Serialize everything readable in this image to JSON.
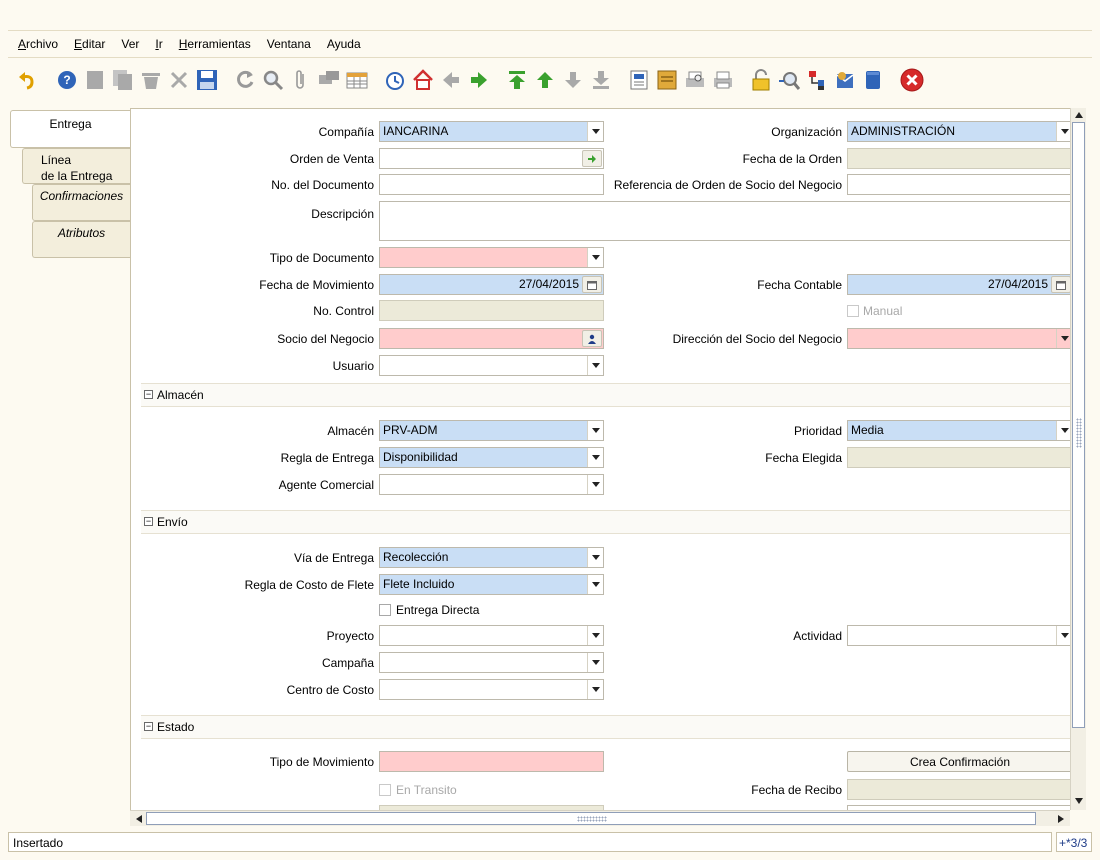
{
  "menu": {
    "items": [
      {
        "mn": "A",
        "rest": "rchivo"
      },
      {
        "mn": "E",
        "rest": "ditar"
      },
      {
        "mn": "",
        "rest": "Ver"
      },
      {
        "mn": "I",
        "rest": "r"
      },
      {
        "mn": "H",
        "rest": "erramientas"
      },
      {
        "mn": "",
        "rest": "Ventana"
      },
      {
        "mn": "",
        "rest": "Ayuda"
      }
    ]
  },
  "toolbar": {
    "icons": [
      "undo-icon",
      "help-icon",
      "new-record-icon",
      "copy-record-icon",
      "delete-icon",
      "delete-selection-icon",
      "save-icon",
      "refresh-icon",
      "find-icon",
      "attachment-icon",
      "chat-icon",
      "grid-toggle-icon",
      "history-icon",
      "home-icon",
      "previous-icon",
      "next-icon",
      "first-record-icon",
      "parent-record-icon",
      "detail-record-icon",
      "last-record-icon",
      "report-icon",
      "archived-documents-icon",
      "print-preview-icon",
      "print-icon",
      "lock-icon",
      "zoom-across-icon",
      "active-workflows-icon",
      "requests-icon",
      "product-info-icon",
      "close-window-icon"
    ]
  },
  "tabs": {
    "entrega": "Entrega",
    "linea_1": "Línea",
    "linea_2": "de la Entrega",
    "confirmaciones": "Confirmaciones",
    "atributos": "Atributos"
  },
  "form": {
    "compania": {
      "label": "Compañía",
      "value": "IANCARINA"
    },
    "organizacion": {
      "label": "Organización",
      "value": "ADMINISTRACIÓN"
    },
    "orden_venta": {
      "label": "Orden de Venta",
      "value": ""
    },
    "fecha_orden": {
      "label": "Fecha de la Orden",
      "value": ""
    },
    "no_documento": {
      "label": "No. del Documento",
      "value": ""
    },
    "referencia_orden": {
      "label": "Referencia de Orden de Socio del Negocio",
      "value": ""
    },
    "descripcion": {
      "label": "Descripción",
      "value": ""
    },
    "tipo_documento": {
      "label": "Tipo de Documento",
      "value": ""
    },
    "fecha_movimiento": {
      "label": "Fecha de Movimiento",
      "value": "27/04/2015"
    },
    "fecha_contable": {
      "label": "Fecha Contable",
      "value": "27/04/2015"
    },
    "no_control": {
      "label": "No. Control",
      "value": ""
    },
    "manual": {
      "label": "Manual",
      "checked": false
    },
    "socio_negocio": {
      "label": "Socio del Negocio",
      "value": ""
    },
    "direccion_socio": {
      "label": "Dirección del Socio del Negocio",
      "value": ""
    },
    "usuario": {
      "label": "Usuario",
      "value": ""
    }
  },
  "almacen_section": {
    "title": "Almacén",
    "almacen": {
      "label": "Almacén",
      "value": "PRV-ADM"
    },
    "prioridad": {
      "label": "Prioridad",
      "value": "Media"
    },
    "regla_entrega": {
      "label": "Regla de Entrega",
      "value": "Disponibilidad"
    },
    "fecha_elegida": {
      "label": "Fecha Elegida",
      "value": ""
    },
    "agente_comercial": {
      "label": "Agente Comercial",
      "value": ""
    }
  },
  "envio_section": {
    "title": "Envío",
    "via_entrega": {
      "label": "Vía de Entrega",
      "value": "Recolección"
    },
    "regla_costo_flete": {
      "label": "Regla de Costo de Flete",
      "value": "Flete Incluido"
    },
    "entrega_directa": {
      "label": "Entrega Directa",
      "checked": false
    },
    "proyecto": {
      "label": "Proyecto",
      "value": ""
    },
    "actividad": {
      "label": "Actividad",
      "value": ""
    },
    "campana": {
      "label": "Campaña",
      "value": ""
    },
    "centro_costo": {
      "label": "Centro de Costo",
      "value": ""
    }
  },
  "estado_section": {
    "title": "Estado",
    "tipo_movimiento": {
      "label": "Tipo de Movimiento",
      "value": ""
    },
    "crea_confirmacion": "Crea Confirmación",
    "en_transito": {
      "label": "En Transito",
      "checked": false
    },
    "fecha_recibo": {
      "label": "Fecha de Recibo",
      "value": ""
    }
  },
  "status": {
    "message": "Insertado",
    "record": "+*3/3"
  },
  "colors": {
    "mandatory_blue": "#c9def5",
    "mandatory_pink": "#ffcccc",
    "readonly_gray": "#ecead9",
    "background": "#fdfaf1"
  }
}
